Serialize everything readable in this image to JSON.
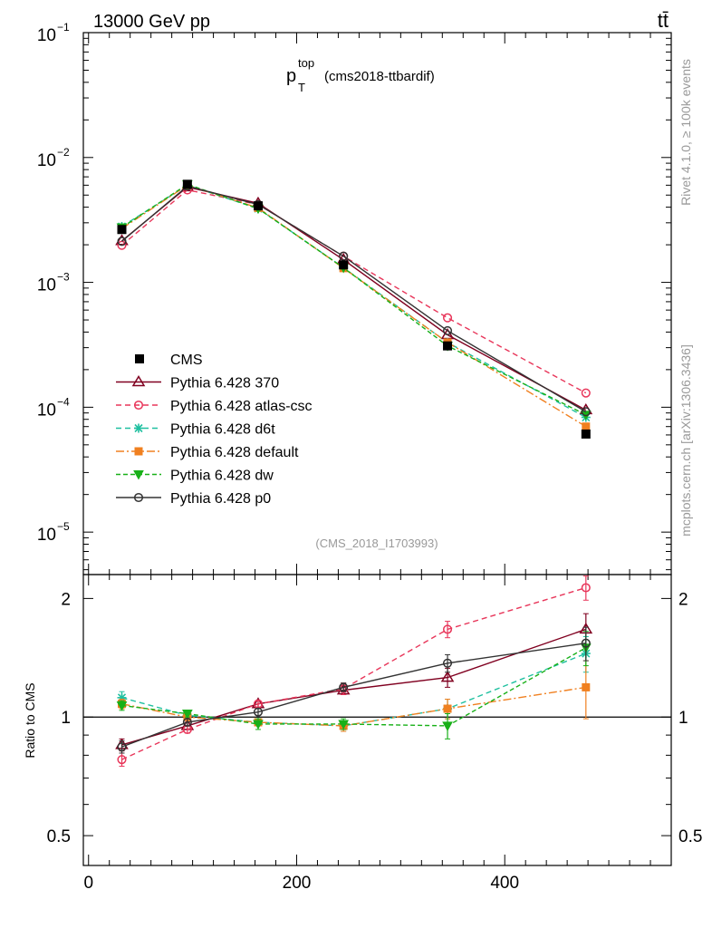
{
  "header": {
    "left": "13000 GeV pp",
    "right": "tt̄"
  },
  "side_labels": {
    "top": "Rivet 4.1.0, ≥ 100k events",
    "bottom": "mcplots.cern.ch [arXiv:1306.3436]"
  },
  "chart_data": {
    "type": "line",
    "title_main": "p",
    "title_sup": "top",
    "title_sub": "T",
    "title_rest": "(cms2018-ttbardif)",
    "analysis_id": "(CMS_2018_I1703993)",
    "x": [
      32,
      95,
      163,
      245,
      345,
      478
    ],
    "xlim": [
      -5,
      560
    ],
    "xticks": [
      0,
      200,
      400
    ],
    "xtick_labels": [
      "0",
      "200",
      "400"
    ],
    "upper": {
      "yscale": "log",
      "ylim_log10": [
        -5.34,
        -1
      ],
      "major_ticks": [
        {
          "exp": -5,
          "label": "10",
          "sup": "−5"
        },
        {
          "exp": -4,
          "label": "10",
          "sup": "−4"
        },
        {
          "exp": -3,
          "label": "10",
          "sup": "−3"
        },
        {
          "exp": -2,
          "label": "10",
          "sup": "−2"
        },
        {
          "exp": -1,
          "label": "10",
          "sup": "−1"
        }
      ]
    },
    "lower": {
      "ylabel": "Ratio to CMS",
      "ylim": [
        0.42,
        2.3
      ],
      "ticks": [
        {
          "v": 0.5,
          "label": "0.5"
        },
        {
          "v": 1,
          "label": "1"
        },
        {
          "v": 2,
          "label": "2"
        }
      ],
      "ratio_transform": "log"
    },
    "data": {
      "name": "CMS",
      "values": [
        0.00265,
        0.0061,
        0.0041,
        0.00138,
        0.00031,
        6.1e-05
      ],
      "color": "#000000"
    },
    "series": [
      {
        "name": "Pythia 6.428 370",
        "color": "#800020",
        "dash": "",
        "marker": "triangle",
        "values": [
          0.00215,
          0.0058,
          0.0043,
          0.00152,
          0.00038,
          9.5e-05
        ],
        "ratio": [
          0.85,
          0.95,
          1.08,
          1.17,
          1.26,
          1.67
        ],
        "ratio_err": [
          0.03,
          0.02,
          0.02,
          0.03,
          0.07,
          0.16
        ]
      },
      {
        "name": "Pythia 6.428 atlas-csc",
        "color": "#e8365a",
        "dash": "6,4",
        "marker": "circle-open",
        "values": [
          0.00198,
          0.0055,
          0.0042,
          0.00162,
          0.00052,
          0.00013
        ],
        "ratio": [
          0.78,
          0.93,
          1.08,
          1.18,
          1.67,
          2.13
        ],
        "ratio_err": [
          0.03,
          0.02,
          0.02,
          0.04,
          0.08,
          0.15
        ]
      },
      {
        "name": "Pythia 6.428 d6t",
        "color": "#1fc0a0",
        "dash": "6,4",
        "marker": "star",
        "values": [
          0.0028,
          0.006,
          0.0039,
          0.00131,
          0.00033,
          8.3e-05
        ],
        "ratio": [
          1.12,
          1.01,
          0.97,
          0.95,
          1.05,
          1.45
        ],
        "ratio_err": [
          0.04,
          0.02,
          0.02,
          0.03,
          0.06,
          0.15
        ]
      },
      {
        "name": "Pythia 6.428 default",
        "color": "#f08020",
        "dash": "9,3,2,3",
        "marker": "square",
        "values": [
          0.0027,
          0.006,
          0.00395,
          0.0013,
          0.00033,
          7e-05
        ],
        "ratio": [
          1.08,
          1.0,
          0.97,
          0.95,
          1.05,
          1.19
        ],
        "ratio_err": [
          0.03,
          0.02,
          0.02,
          0.03,
          0.06,
          0.2
        ]
      },
      {
        "name": "Pythia 6.428 dw",
        "color": "#18b018",
        "dash": "5,3",
        "marker": "triangle-down",
        "values": [
          0.00275,
          0.0061,
          0.0039,
          0.00131,
          0.00031,
          8.7e-05
        ],
        "ratio": [
          1.07,
          1.02,
          0.96,
          0.96,
          0.95,
          1.5
        ],
        "ratio_err": [
          0.03,
          0.02,
          0.03,
          0.03,
          0.07,
          0.15
        ]
      },
      {
        "name": "Pythia 6.428 p0",
        "color": "#333333",
        "dash": "",
        "marker": "circle-open",
        "values": [
          0.00213,
          0.0059,
          0.0042,
          0.00162,
          0.00041,
          9.2e-05
        ],
        "ratio": [
          0.84,
          0.97,
          1.03,
          1.19,
          1.37,
          1.54
        ],
        "ratio_err": [
          0.03,
          0.02,
          0.02,
          0.03,
          0.07,
          0.15
        ]
      }
    ]
  }
}
